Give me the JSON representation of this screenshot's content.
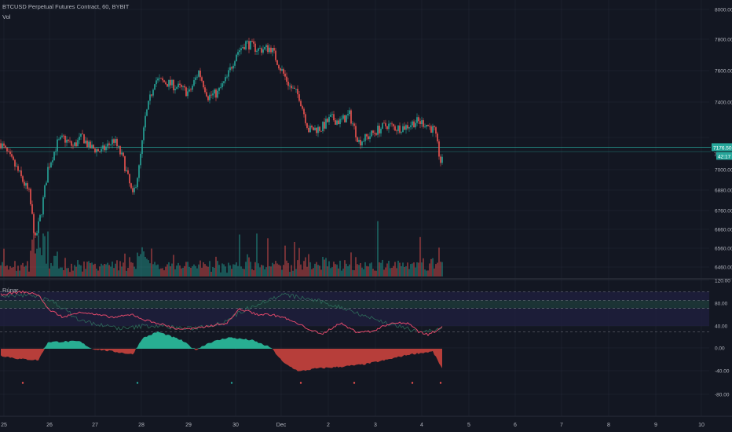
{
  "header": {
    "symbol": "BTCUSD Perpetual Futures Contract, 60, BYBIT",
    "volume_label": "Vol",
    "indicator_label": "Rúnar"
  },
  "price_axis": {
    "ticks": [
      "8000.00",
      "7800.00",
      "7600.00",
      "7400.00",
      "7000.00",
      "6880.00",
      "6760.00",
      "6660.00",
      "6560.00",
      "6460.00"
    ],
    "last_price": "7176.50",
    "countdown": "42:17",
    "partial_tick": "7"
  },
  "indicator_axis": {
    "ticks": [
      "120.00",
      "80.00",
      "40.00",
      "0.00",
      "-40.00",
      "-80.00"
    ]
  },
  "time_axis": {
    "labels": [
      "25",
      "26",
      "27",
      "28",
      "29",
      "30",
      "Dec",
      "2",
      "3",
      "4",
      "5",
      "6",
      "7",
      "8",
      "9",
      "10"
    ]
  },
  "colors": {
    "background": "#131722",
    "up": "#26a69a",
    "down": "#ef5350",
    "grid": "#363c4e",
    "text": "#b2b5be",
    "price_line": "#26a69a",
    "rsi_line": "#e0486a",
    "band_fill": "#1f1f3f"
  },
  "chart_data": [
    {
      "type": "candlestick",
      "title": "BTCUSD Perpetual Futures Contract, 60, BYBIT",
      "interval": "60",
      "ylim": [
        6420,
        8060
      ],
      "anchors": [
        [
          0,
          7200
        ],
        [
          10,
          7050
        ],
        [
          18,
          6900
        ],
        [
          22,
          6620
        ],
        [
          26,
          6800
        ],
        [
          30,
          7050
        ],
        [
          36,
          7200
        ],
        [
          40,
          7230
        ],
        [
          46,
          7180
        ],
        [
          52,
          7240
        ],
        [
          56,
          7180
        ],
        [
          64,
          7150
        ],
        [
          72,
          7220
        ],
        [
          78,
          7100
        ],
        [
          84,
          6880
        ],
        [
          88,
          7050
        ],
        [
          92,
          7350
        ],
        [
          98,
          7580
        ],
        [
          106,
          7560
        ],
        [
          114,
          7530
        ],
        [
          120,
          7500
        ],
        [
          126,
          7630
        ],
        [
          132,
          7480
        ],
        [
          138,
          7500
        ],
        [
          144,
          7590
        ],
        [
          150,
          7740
        ],
        [
          156,
          7800
        ],
        [
          164,
          7760
        ],
        [
          172,
          7770
        ],
        [
          178,
          7650
        ],
        [
          184,
          7540
        ],
        [
          190,
          7480
        ],
        [
          196,
          7280
        ],
        [
          204,
          7290
        ],
        [
          210,
          7350
        ],
        [
          216,
          7330
        ],
        [
          222,
          7370
        ],
        [
          228,
          7210
        ],
        [
          234,
          7240
        ],
        [
          240,
          7280
        ],
        [
          246,
          7310
        ],
        [
          252,
          7290
        ],
        [
          258,
          7300
        ],
        [
          264,
          7330
        ],
        [
          270,
          7320
        ],
        [
          276,
          7275
        ],
        [
          280,
          7090
        ]
      ],
      "last_price": 7176.5
    },
    {
      "type": "bar",
      "title": "Vol"
    },
    {
      "type": "line",
      "title": "Rúnar",
      "ylim": [
        -100,
        125
      ],
      "band": [
        40,
        100
      ],
      "levels": [
        30,
        71,
        85,
        100
      ],
      "histogram_anchors": [
        [
          0,
          -12
        ],
        [
          12,
          -18
        ],
        [
          24,
          -20
        ],
        [
          30,
          12
        ],
        [
          50,
          13
        ],
        [
          58,
          0
        ],
        [
          72,
          -5
        ],
        [
          84,
          -10
        ],
        [
          90,
          18
        ],
        [
          100,
          30
        ],
        [
          115,
          15
        ],
        [
          124,
          -2
        ],
        [
          132,
          10
        ],
        [
          145,
          20
        ],
        [
          160,
          15
        ],
        [
          172,
          2
        ],
        [
          180,
          -25
        ],
        [
          190,
          -40
        ],
        [
          200,
          -35
        ],
        [
          215,
          -32
        ],
        [
          230,
          -28
        ],
        [
          245,
          -20
        ],
        [
          260,
          -10
        ],
        [
          275,
          -5
        ],
        [
          281,
          -35
        ]
      ],
      "rsi_anchors": [
        [
          0,
          95
        ],
        [
          14,
          100
        ],
        [
          24,
          95
        ],
        [
          30,
          70
        ],
        [
          40,
          55
        ],
        [
          50,
          65
        ],
        [
          60,
          60
        ],
        [
          72,
          55
        ],
        [
          84,
          60
        ],
        [
          92,
          50
        ],
        [
          100,
          45
        ],
        [
          112,
          35
        ],
        [
          124,
          35
        ],
        [
          132,
          40
        ],
        [
          144,
          45
        ],
        [
          152,
          70
        ],
        [
          164,
          60
        ],
        [
          172,
          60
        ],
        [
          180,
          55
        ],
        [
          196,
          35
        ],
        [
          204,
          25
        ],
        [
          216,
          45
        ],
        [
          226,
          30
        ],
        [
          236,
          30
        ],
        [
          248,
          45
        ],
        [
          260,
          45
        ],
        [
          266,
          30
        ],
        [
          272,
          25
        ],
        [
          276,
          30
        ],
        [
          281,
          40
        ]
      ],
      "signal_anchors": [
        [
          0,
          90
        ],
        [
          20,
          95
        ],
        [
          35,
          80
        ],
        [
          50,
          50
        ],
        [
          66,
          40
        ],
        [
          80,
          35
        ],
        [
          90,
          40
        ],
        [
          100,
          40
        ],
        [
          120,
          35
        ],
        [
          140,
          45
        ],
        [
          160,
          75
        ],
        [
          180,
          95
        ],
        [
          200,
          85
        ],
        [
          220,
          70
        ],
        [
          240,
          50
        ],
        [
          258,
          35
        ],
        [
          270,
          30
        ],
        [
          281,
          35
        ]
      ]
    }
  ]
}
